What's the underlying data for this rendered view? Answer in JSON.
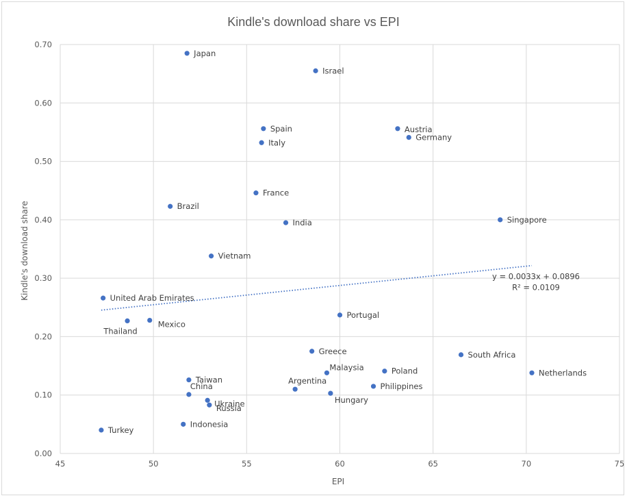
{
  "chart_data": {
    "type": "scatter",
    "title": "Kindle's download share  vs EPI",
    "xlabel": "EPI",
    "ylabel": "Kindle's download share",
    "xlim": [
      45,
      75
    ],
    "ylim": [
      0,
      0.7
    ],
    "x_ticks": [
      "45",
      "50",
      "55",
      "60",
      "65",
      "70",
      "75"
    ],
    "y_ticks": [
      "0.00",
      "0.10",
      "0.20",
      "0.30",
      "0.40",
      "0.50",
      "0.60",
      "0.70"
    ],
    "grid": true,
    "marker_color": "#4472c4",
    "trendline": {
      "type": "linear",
      "slope": 0.0033,
      "intercept": 0.0896,
      "x_range": [
        47.2,
        70.3
      ],
      "equation": "y = 0.0033x + 0.0896",
      "r_squared": "R² = 0.0109"
    },
    "points": [
      {
        "label": "Japan",
        "x": 51.8,
        "y": 0.685
      },
      {
        "label": "Israel",
        "x": 58.7,
        "y": 0.655
      },
      {
        "label": "Spain",
        "x": 55.9,
        "y": 0.556
      },
      {
        "label": "Austria",
        "x": 63.1,
        "y": 0.556
      },
      {
        "label": "Germany",
        "x": 63.7,
        "y": 0.541
      },
      {
        "label": "Italy",
        "x": 55.8,
        "y": 0.532
      },
      {
        "label": "France",
        "x": 55.5,
        "y": 0.446
      },
      {
        "label": "Brazil",
        "x": 50.9,
        "y": 0.423
      },
      {
        "label": "Singapore",
        "x": 68.6,
        "y": 0.4
      },
      {
        "label": "India",
        "x": 57.1,
        "y": 0.395
      },
      {
        "label": "Vietnam",
        "x": 53.1,
        "y": 0.338
      },
      {
        "label": "United Arab Emirates",
        "x": 47.3,
        "y": 0.266
      },
      {
        "label": "Portugal",
        "x": 60.0,
        "y": 0.237
      },
      {
        "label": "Mexico",
        "x": 49.8,
        "y": 0.228
      },
      {
        "label": "Thailand",
        "x": 48.6,
        "y": 0.227
      },
      {
        "label": "Greece",
        "x": 58.5,
        "y": 0.175
      },
      {
        "label": "South Africa",
        "x": 66.5,
        "y": 0.169
      },
      {
        "label": "Poland",
        "x": 62.4,
        "y": 0.141
      },
      {
        "label": "Malaysia",
        "x": 59.3,
        "y": 0.138
      },
      {
        "label": "Netherlands",
        "x": 70.3,
        "y": 0.138
      },
      {
        "label": "Taiwan",
        "x": 51.9,
        "y": 0.126
      },
      {
        "label": "Philippines",
        "x": 61.8,
        "y": 0.115
      },
      {
        "label": "Argentina",
        "x": 57.6,
        "y": 0.11
      },
      {
        "label": "Hungary",
        "x": 59.5,
        "y": 0.103
      },
      {
        "label": "China",
        "x": 51.9,
        "y": 0.101
      },
      {
        "label": "Ukraine",
        "x": 52.9,
        "y": 0.091
      },
      {
        "label": "Russia",
        "x": 53.0,
        "y": 0.083
      },
      {
        "label": "Indonesia",
        "x": 51.6,
        "y": 0.05
      },
      {
        "label": "Turkey",
        "x": 47.2,
        "y": 0.04
      }
    ]
  }
}
